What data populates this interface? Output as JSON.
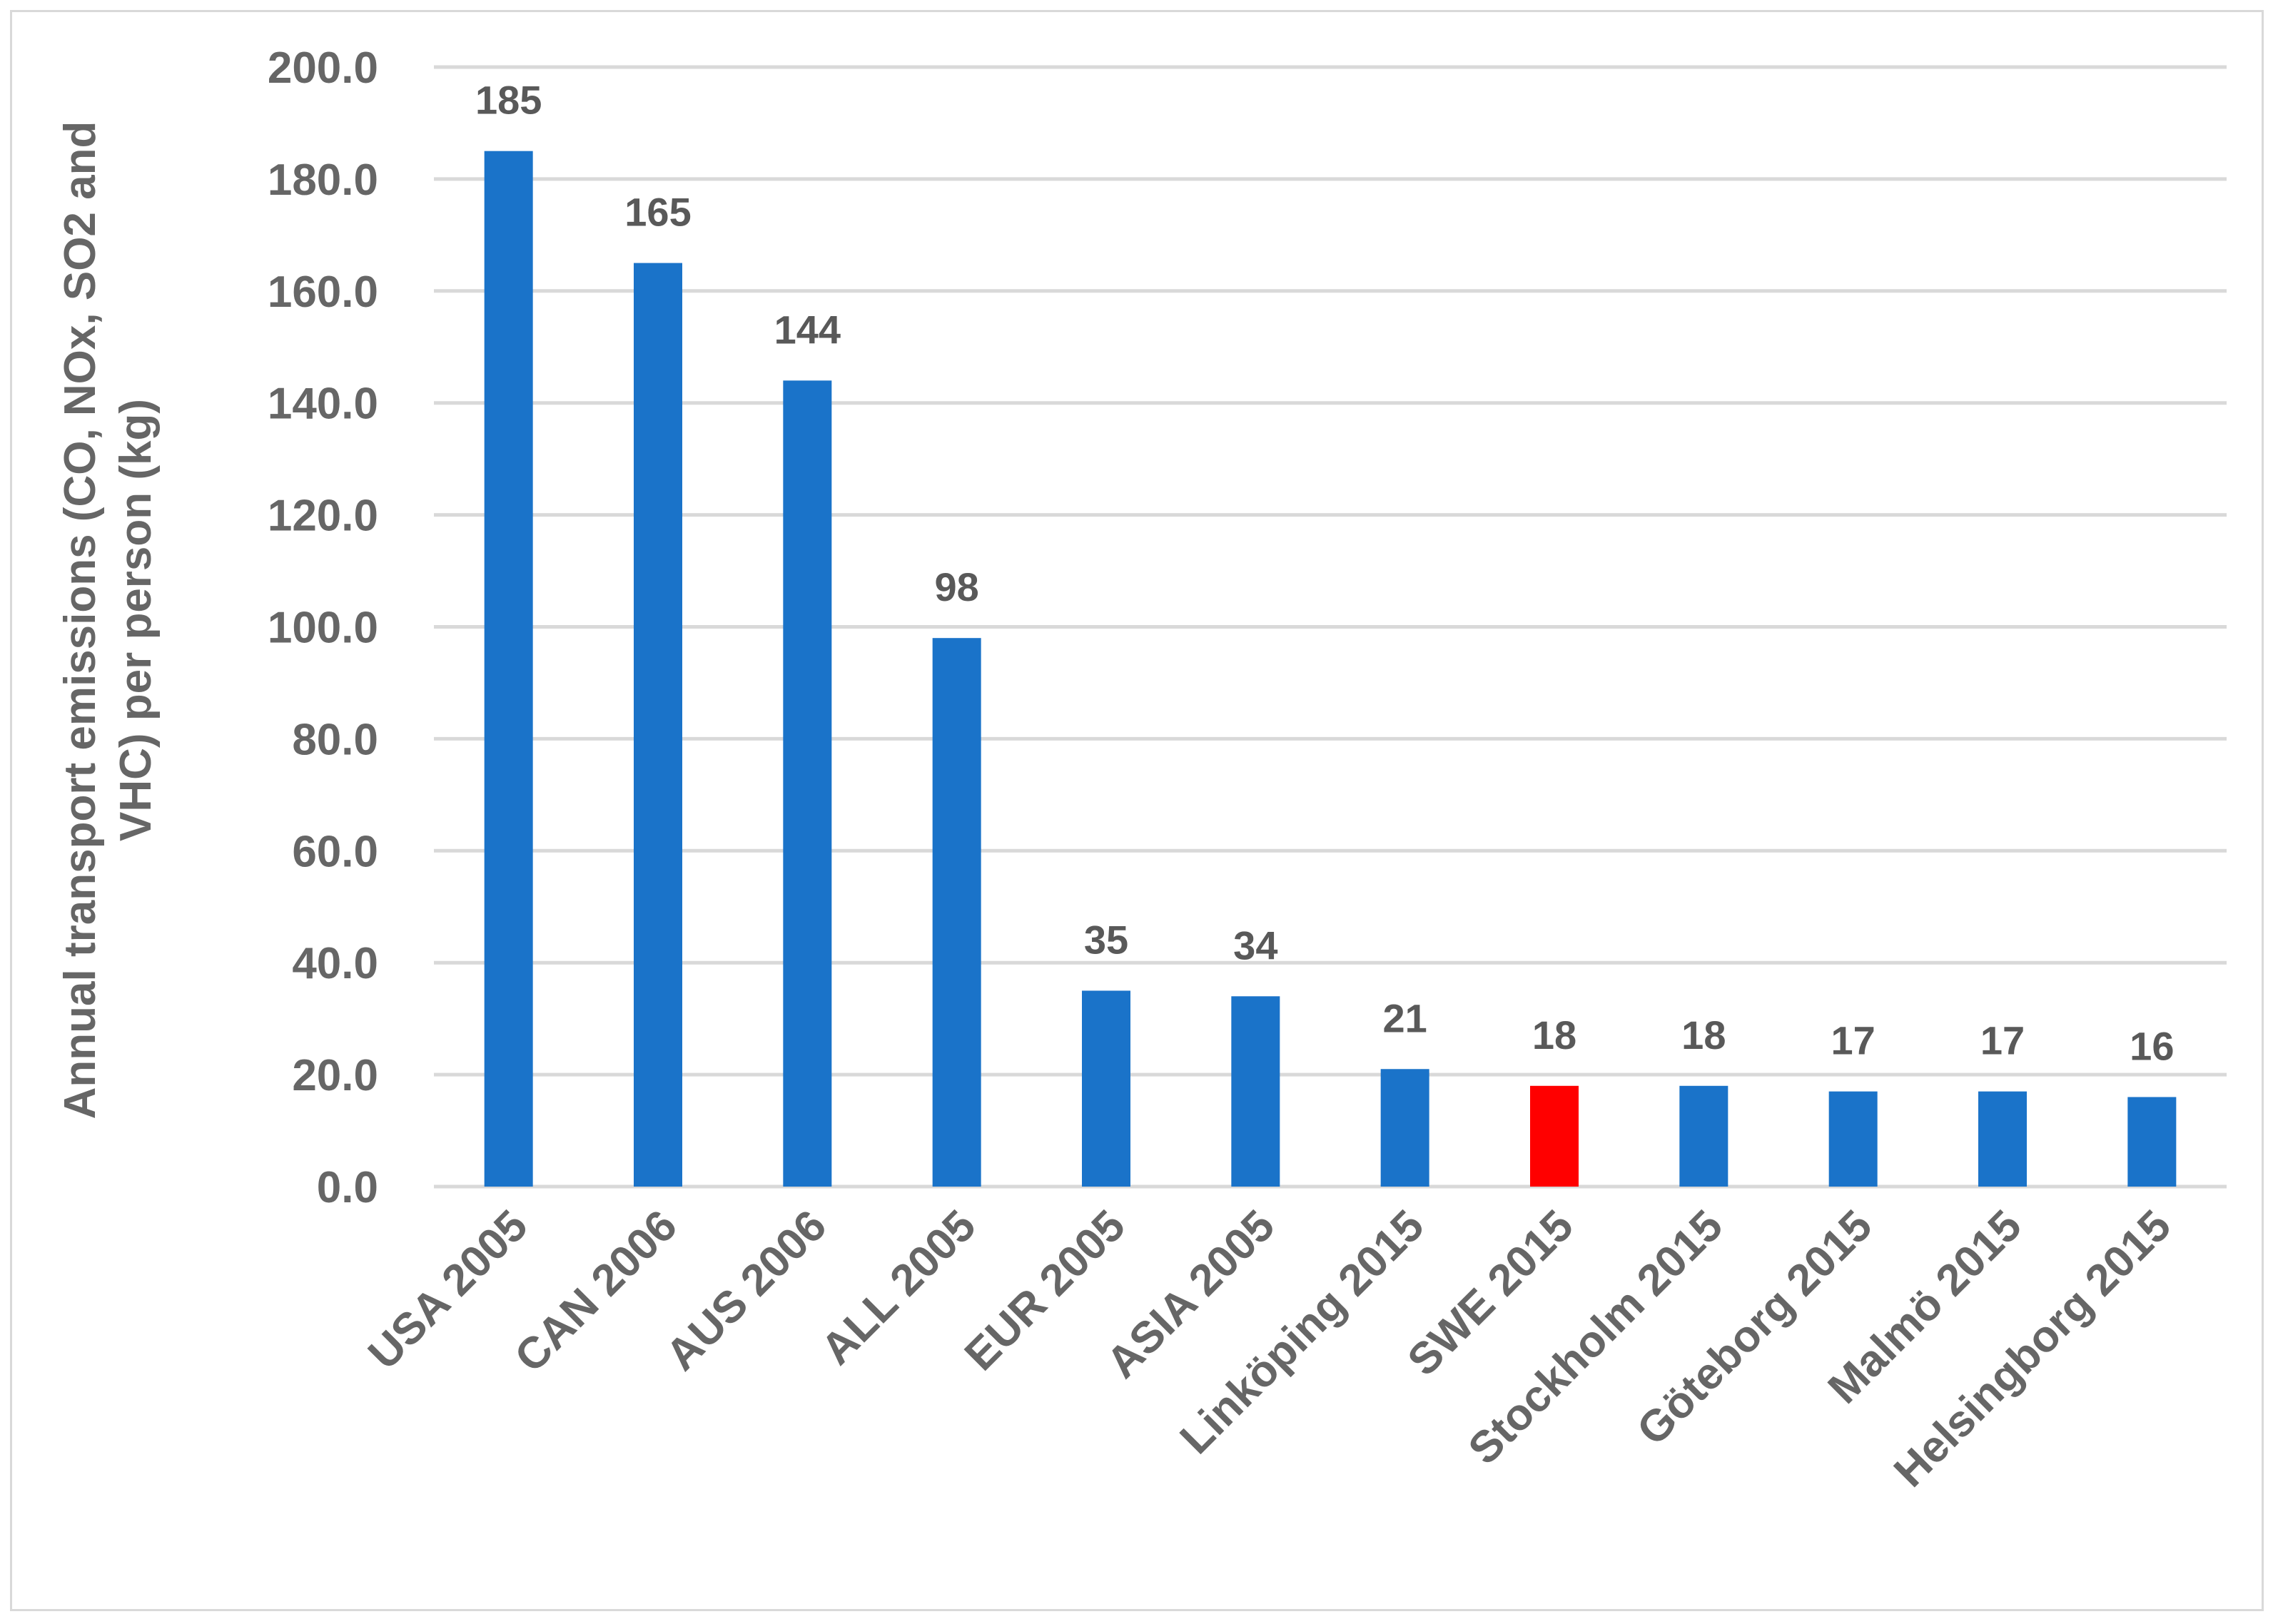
{
  "chart_data": {
    "type": "bar",
    "categories": [
      "USA 2005",
      "CAN 2006",
      "AUS 2006",
      "ALL 2005",
      "EUR 2005",
      "ASIA 2005",
      "Linköping 2015",
      "SWE 2015",
      "Stockholm 2015",
      "Göteborg 2015",
      "Malmö 2015",
      "Helsingborg 2015"
    ],
    "values": [
      185,
      165,
      144,
      98,
      35,
      34,
      21,
      18,
      18,
      17,
      17,
      16
    ],
    "data_labels": [
      "185",
      "165",
      "144",
      "98",
      "35",
      "34",
      "21",
      "18",
      "18",
      "17",
      "17",
      "16"
    ],
    "bar_colors": [
      "#1a73c9",
      "#1a73c9",
      "#1a73c9",
      "#1a73c9",
      "#1a73c9",
      "#1a73c9",
      "#1a73c9",
      "#ff0000",
      "#1a73c9",
      "#1a73c9",
      "#1a73c9",
      "#1a73c9"
    ],
    "ylabel_lines": [
      "Annual transport emissions (CO, NOx,  SO2 and",
      "VHC) per person (kg)"
    ],
    "ylim": [
      0,
      200
    ],
    "yticks": [
      "0.0",
      "20.0",
      "40.0",
      "60.0",
      "80.0",
      "100.0",
      "120.0",
      "140.0",
      "160.0",
      "180.0",
      "200.0"
    ],
    "grid": true,
    "colors": {
      "bar": "#1a73c9",
      "highlight": "#ff0000",
      "grid": "#d9d9d9",
      "text": "#666666"
    }
  }
}
